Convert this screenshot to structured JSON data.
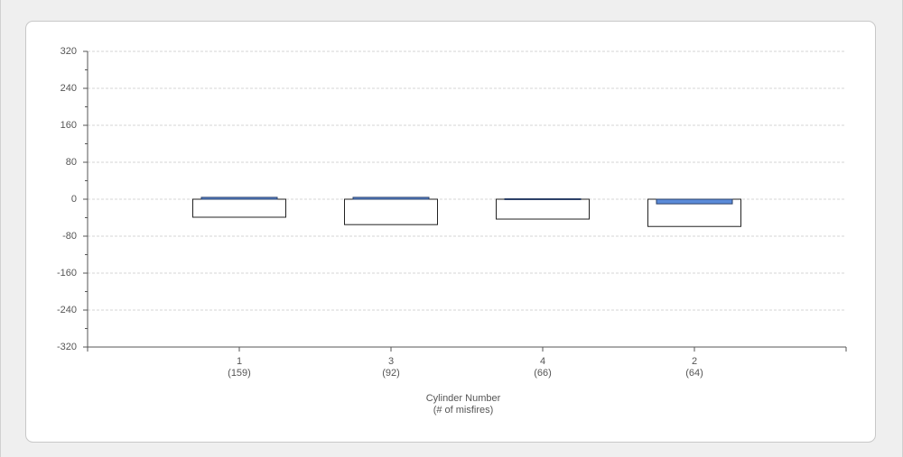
{
  "chart_data": {
    "type": "bar",
    "categories": [
      "1",
      "3",
      "4",
      "2"
    ],
    "category_sublabels": [
      "(159)",
      "(92)",
      "(66)",
      "(64)"
    ],
    "xlabel": "Cylinder Number",
    "xlabel_sub": "(# of misfires)",
    "series": [
      {
        "color": "#ffffff",
        "values": [
          -39,
          -55,
          -43,
          -59
        ]
      },
      {
        "color": "#5b8bd9",
        "values": [
          4,
          4,
          1,
          -10
        ]
      }
    ],
    "ylim": [
      -320,
      320
    ],
    "yticks": [
      320,
      240,
      160,
      80,
      0,
      -80,
      -160,
      -240,
      -320
    ],
    "grid": true
  }
}
